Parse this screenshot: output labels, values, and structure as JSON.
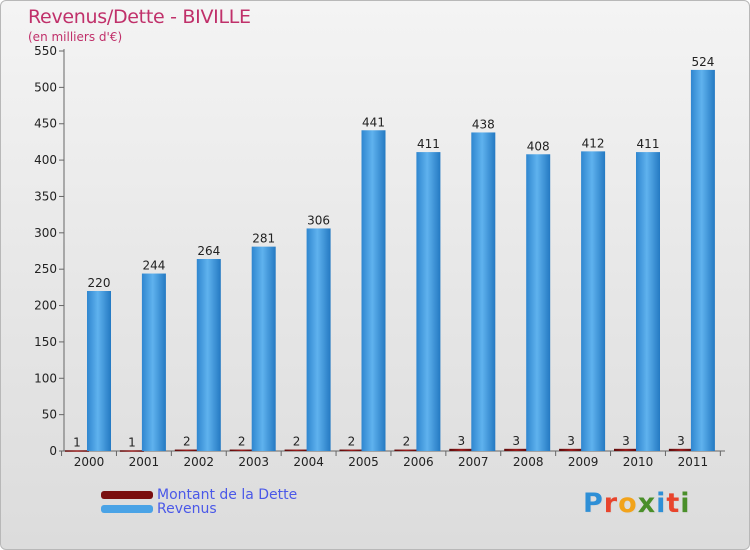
{
  "title": "Revenus/Dette - BIVILLE",
  "subtitle": "(en milliers d'€)",
  "colors": {
    "revenus": "#4aa3e6",
    "revenus_dark": "#2479c2",
    "dette": "#7a0f0f",
    "axis": "#666666",
    "text": "#222222",
    "accent": "#c0306a",
    "legend_text": "#4a58e8"
  },
  "chart_data": {
    "type": "bar",
    "title": "Revenus/Dette - BIVILLE",
    "ylabel": "(en milliers d'€)",
    "xlabel": "",
    "categories": [
      "2000",
      "2001",
      "2002",
      "2003",
      "2004",
      "2005",
      "2006",
      "2007",
      "2008",
      "2009",
      "2010",
      "2011"
    ],
    "series": [
      {
        "name": "Montant de la Dette",
        "values": [
          1,
          1,
          2,
          2,
          2,
          2,
          2,
          3,
          3,
          3,
          3,
          3
        ]
      },
      {
        "name": "Revenus",
        "values": [
          220,
          244,
          264,
          281,
          306,
          441,
          411,
          438,
          408,
          412,
          411,
          524
        ]
      }
    ],
    "ylim": [
      0,
      550
    ],
    "yticks": [
      0,
      50,
      100,
      150,
      200,
      250,
      300,
      350,
      400,
      450,
      500,
      550
    ],
    "grid": false,
    "legend": "bottom-left"
  },
  "legend": {
    "items": [
      "Montant de la Dette",
      "Revenus"
    ]
  },
  "logo": {
    "text": "Proxiti",
    "letters": [
      "P",
      "r",
      "o",
      "x",
      "i",
      "t",
      "i"
    ],
    "colors": [
      "#2e8fd6",
      "#e8442c",
      "#f2a31b",
      "#4a8f2a",
      "#2e8fd6",
      "#e8442c",
      "#4a8f2a"
    ]
  }
}
